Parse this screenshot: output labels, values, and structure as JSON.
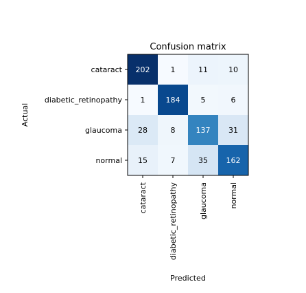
{
  "chart_data": {
    "type": "heatmap",
    "title": "Confusion matrix",
    "xlabel": "Predicted",
    "ylabel": "Actual",
    "row_labels": [
      "cataract",
      "diabetic_retinopathy",
      "glaucoma",
      "normal"
    ],
    "col_labels": [
      "cataract",
      "diabetic_retinopathy",
      "glaucoma",
      "normal"
    ],
    "values": [
      [
        202,
        1,
        11,
        10
      ],
      [
        1,
        184,
        5,
        6
      ],
      [
        28,
        8,
        137,
        31
      ],
      [
        15,
        7,
        35,
        162
      ]
    ],
    "colormap": "Blues",
    "colors": {
      "low": "#f7fbff",
      "high": "#08306b",
      "text_dark": "#000000",
      "text_light": "#ffffff"
    }
  }
}
